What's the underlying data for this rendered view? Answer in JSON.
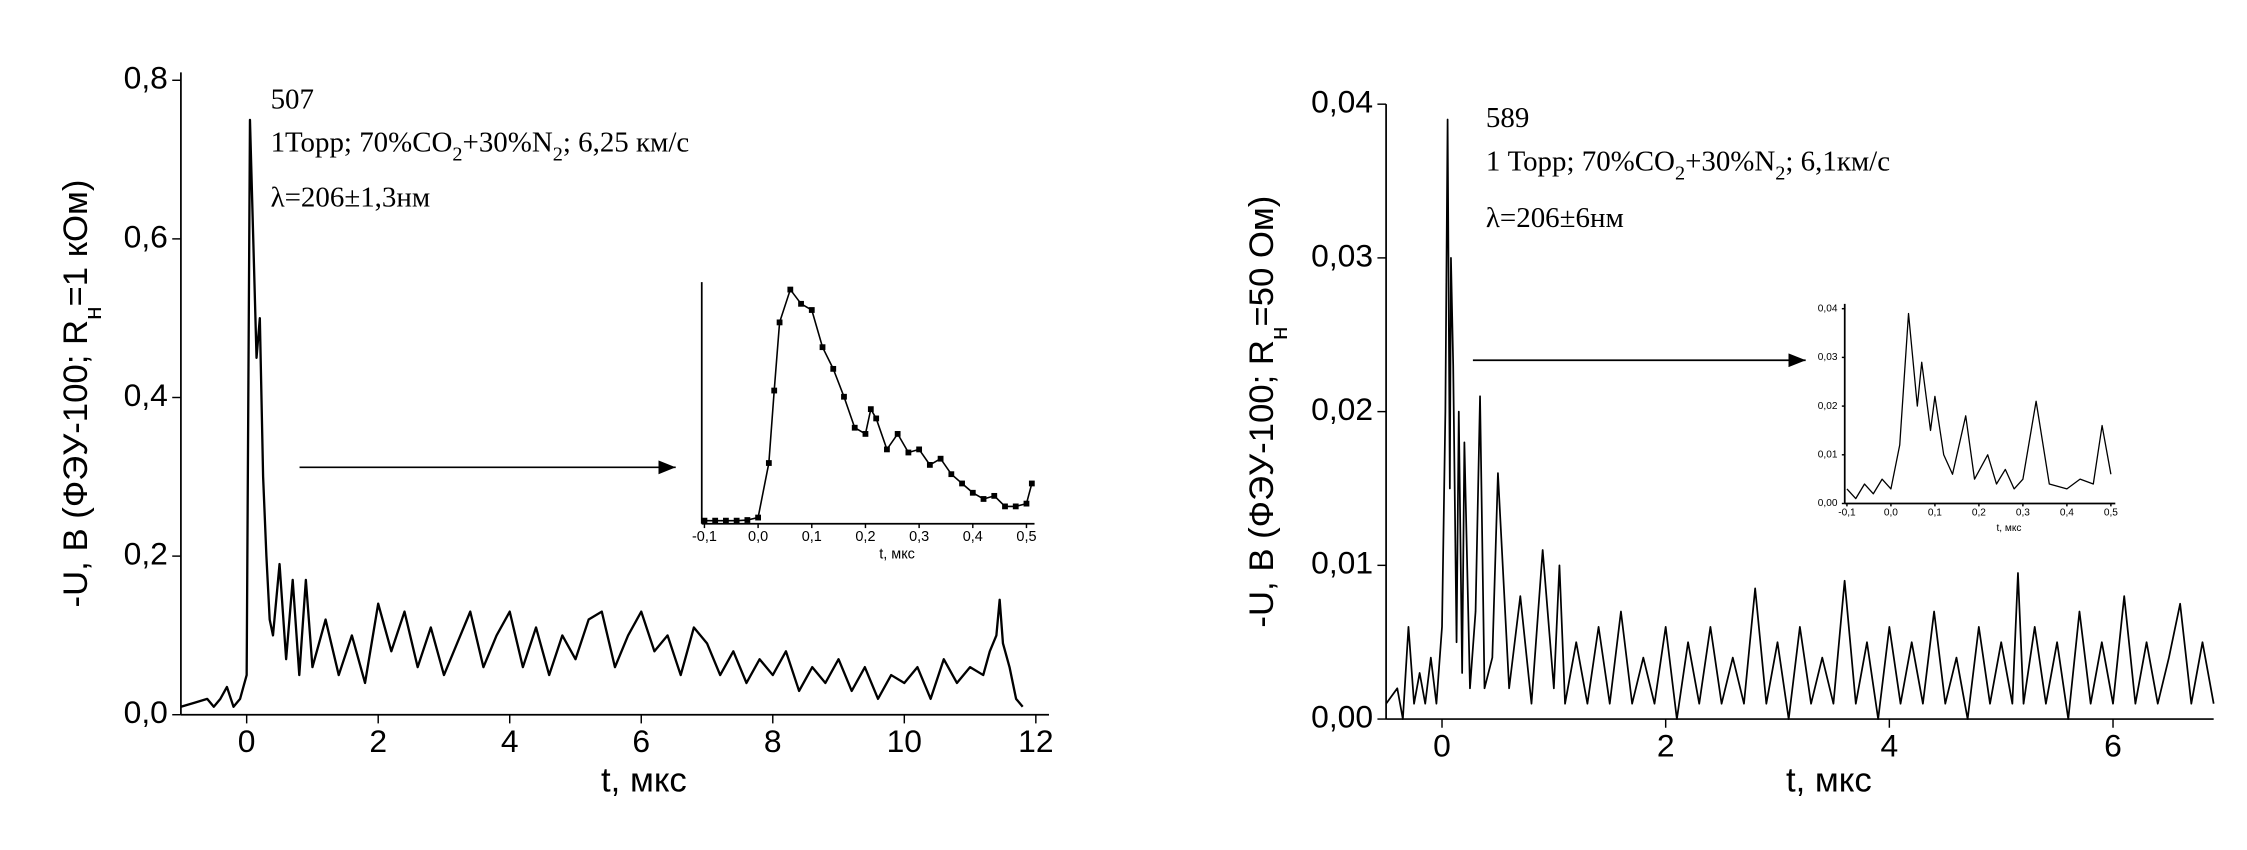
{
  "chart_data": [
    {
      "type": "line",
      "ylabel": [
        "-U, В (ФЭУ-100; R",
        "н",
        "=1 кОм)"
      ],
      "xlabel": "t, мкс",
      "annotations": [
        [
          "507"
        ],
        [
          "1Торр; 70%CO",
          "2",
          "+30%N",
          "2",
          "; 6,25 км/с"
        ],
        [
          "λ=206±1,3нм"
        ]
      ],
      "x": [
        -1,
        -0.8,
        -0.6,
        -0.5,
        -0.4,
        -0.3,
        -0.2,
        -0.1,
        0,
        0.05,
        0.1,
        0.15,
        0.2,
        0.25,
        0.3,
        0.35,
        0.4,
        0.5,
        0.6,
        0.7,
        0.8,
        0.9,
        1.0,
        1.2,
        1.4,
        1.6,
        1.8,
        2.0,
        2.2,
        2.4,
        2.6,
        2.8,
        3.0,
        3.2,
        3.4,
        3.6,
        3.8,
        4.0,
        4.2,
        4.4,
        4.6,
        4.8,
        5.0,
        5.2,
        5.4,
        5.6,
        5.8,
        6.0,
        6.2,
        6.4,
        6.6,
        6.8,
        7.0,
        7.2,
        7.4,
        7.6,
        7.8,
        8.0,
        8.2,
        8.4,
        8.6,
        8.8,
        9.0,
        9.2,
        9.4,
        9.6,
        9.8,
        10.0,
        10.2,
        10.4,
        10.6,
        10.8,
        11.0,
        11.2,
        11.3,
        11.4,
        11.45,
        11.5,
        11.6,
        11.7,
        11.8
      ],
      "values": [
        0.01,
        0.015,
        0.02,
        0.01,
        0.02,
        0.035,
        0.01,
        0.02,
        0.05,
        0.75,
        0.6,
        0.45,
        0.5,
        0.3,
        0.2,
        0.12,
        0.1,
        0.19,
        0.07,
        0.17,
        0.05,
        0.17,
        0.06,
        0.12,
        0.05,
        0.1,
        0.04,
        0.14,
        0.08,
        0.13,
        0.06,
        0.11,
        0.05,
        0.09,
        0.13,
        0.06,
        0.1,
        0.13,
        0.06,
        0.11,
        0.05,
        0.1,
        0.07,
        0.12,
        0.13,
        0.06,
        0.1,
        0.13,
        0.08,
        0.1,
        0.05,
        0.11,
        0.09,
        0.05,
        0.08,
        0.04,
        0.07,
        0.05,
        0.08,
        0.03,
        0.06,
        0.04,
        0.07,
        0.03,
        0.06,
        0.02,
        0.05,
        0.04,
        0.06,
        0.02,
        0.07,
        0.04,
        0.06,
        0.05,
        0.08,
        0.1,
        0.145,
        0.09,
        0.06,
        0.02,
        0.01
      ],
      "color": "#000000",
      "xlim": [
        -1,
        12.2
      ],
      "ylim": [
        0,
        0.81
      ],
      "xticks": [
        0,
        2,
        4,
        6,
        8,
        10,
        12
      ],
      "yticks": [
        {
          "value": 0,
          "label": "0,0"
        },
        {
          "value": 0.2,
          "label": "0,2"
        },
        {
          "value": 0.4,
          "label": "0,4"
        },
        {
          "value": 0.6,
          "label": "0,6"
        },
        {
          "value": 0.8,
          "label": "0,8"
        }
      ]
    },
    {
      "type": "line",
      "xlabel": "t, мкс",
      "markers": true,
      "x": [
        -0.1,
        -0.08,
        -0.06,
        -0.04,
        -0.02,
        0,
        0.02,
        0.03,
        0.04,
        0.06,
        0.08,
        0.1,
        0.12,
        0.14,
        0.16,
        0.18,
        0.2,
        0.21,
        0.22,
        0.24,
        0.26,
        0.28,
        0.3,
        0.32,
        0.34,
        0.36,
        0.38,
        0.4,
        0.42,
        0.44,
        0.46,
        0.48,
        0.5,
        0.51
      ],
      "values": [
        0.01,
        0.01,
        0.01,
        0.01,
        0.012,
        0.02,
        0.196,
        0.43,
        0.65,
        0.756,
        0.71,
        0.69,
        0.57,
        0.5,
        0.41,
        0.31,
        0.29,
        0.37,
        0.34,
        0.24,
        0.29,
        0.23,
        0.24,
        0.19,
        0.21,
        0.16,
        0.13,
        0.1,
        0.08,
        0.09,
        0.056,
        0.056,
        0.065,
        0.13
      ],
      "color": "#000000",
      "xlim": [
        -0.105,
        0.515
      ],
      "ylim": [
        0,
        0.78
      ],
      "xticks": [
        {
          "value": -0.1,
          "label": "-0,1"
        },
        {
          "value": 0,
          "label": "0,0"
        },
        {
          "value": 0.1,
          "label": "0,1"
        },
        {
          "value": 0.2,
          "label": "0,2"
        },
        {
          "value": 0.3,
          "label": "0,3"
        },
        {
          "value": 0.4,
          "label": "0,4"
        },
        {
          "value": 0.5,
          "label": "0,5"
        }
      ]
    },
    {
      "type": "line",
      "ylabel": [
        "-U, В (ФЭУ-100; R",
        "н",
        "=50 Ом)"
      ],
      "xlabel": "t, мкс",
      "annotations": [
        [
          "589"
        ],
        [
          "1 Торр; 70%CO",
          "2",
          "+30%N",
          "2",
          "; 6,1км/с"
        ],
        [
          "λ=206±6нм"
        ]
      ],
      "x": [
        -0.5,
        -0.4,
        -0.35,
        -0.3,
        -0.25,
        -0.2,
        -0.15,
        -0.1,
        -0.05,
        0,
        0.03,
        0.05,
        0.07,
        0.08,
        0.1,
        0.13,
        0.15,
        0.18,
        0.2,
        0.25,
        0.3,
        0.34,
        0.38,
        0.45,
        0.5,
        0.6,
        0.7,
        0.8,
        0.9,
        1.0,
        1.05,
        1.1,
        1.2,
        1.3,
        1.4,
        1.5,
        1.6,
        1.7,
        1.8,
        1.9,
        2.0,
        2.1,
        2.2,
        2.3,
        2.4,
        2.5,
        2.6,
        2.7,
        2.8,
        2.9,
        3.0,
        3.1,
        3.2,
        3.3,
        3.4,
        3.5,
        3.6,
        3.7,
        3.8,
        3.9,
        4.0,
        4.1,
        4.2,
        4.3,
        4.4,
        4.5,
        4.6,
        4.7,
        4.8,
        4.9,
        5.0,
        5.1,
        5.15,
        5.2,
        5.3,
        5.4,
        5.5,
        5.6,
        5.7,
        5.8,
        5.9,
        6.0,
        6.1,
        6.2,
        6.3,
        6.4,
        6.5,
        6.6,
        6.7,
        6.8,
        6.9
      ],
      "values": [
        0.001,
        0.002,
        0.0,
        0.006,
        0.001,
        0.003,
        0.001,
        0.004,
        0.001,
        0.006,
        0.02,
        0.039,
        0.015,
        0.03,
        0.023,
        0.005,
        0.02,
        0.003,
        0.018,
        0.002,
        0.007,
        0.021,
        0.002,
        0.004,
        0.016,
        0.002,
        0.008,
        0.001,
        0.011,
        0.002,
        0.01,
        0.001,
        0.005,
        0.001,
        0.006,
        0.001,
        0.007,
        0.001,
        0.004,
        0.001,
        0.006,
        0.0,
        0.005,
        0.001,
        0.006,
        0.001,
        0.004,
        0.001,
        0.0085,
        0.001,
        0.005,
        0.0,
        0.006,
        0.001,
        0.004,
        0.001,
        0.009,
        0.001,
        0.005,
        0.0,
        0.006,
        0.001,
        0.005,
        0.001,
        0.007,
        0.001,
        0.004,
        0.0,
        0.006,
        0.001,
        0.005,
        0.001,
        0.0095,
        0.001,
        0.006,
        0.001,
        0.005,
        0.0,
        0.007,
        0.001,
        0.005,
        0.001,
        0.008,
        0.001,
        0.005,
        0.001,
        0.004,
        0.0075,
        0.001,
        0.005,
        0.001
      ],
      "color": "#000000",
      "xlim": [
        -0.5,
        6.9
      ],
      "ylim": [
        0,
        0.04
      ],
      "xticks": [
        0,
        2,
        4,
        6
      ],
      "yticks": [
        {
          "value": 0,
          "label": "0,00"
        },
        {
          "value": 0.01,
          "label": "0,01"
        },
        {
          "value": 0.02,
          "label": "0,02"
        },
        {
          "value": 0.03,
          "label": "0,03"
        },
        {
          "value": 0.04,
          "label": "0,04"
        }
      ]
    },
    {
      "type": "line",
      "xlabel": "t, мкс",
      "x": [
        -0.1,
        -0.08,
        -0.06,
        -0.04,
        -0.02,
        0,
        0.02,
        0.04,
        0.06,
        0.07,
        0.09,
        0.1,
        0.12,
        0.14,
        0.17,
        0.19,
        0.22,
        0.24,
        0.26,
        0.28,
        0.3,
        0.33,
        0.36,
        0.4,
        0.43,
        0.46,
        0.48,
        0.5
      ],
      "values": [
        0.003,
        0.001,
        0.004,
        0.002,
        0.005,
        0.003,
        0.012,
        0.039,
        0.02,
        0.029,
        0.015,
        0.022,
        0.01,
        0.006,
        0.018,
        0.005,
        0.01,
        0.004,
        0.007,
        0.003,
        0.005,
        0.021,
        0.004,
        0.003,
        0.005,
        0.004,
        0.016,
        0.006
      ],
      "color": "#000000",
      "xlim": [
        -0.105,
        0.51
      ],
      "ylim": [
        0,
        0.041
      ],
      "xticks": [
        {
          "value": -0.1,
          "label": "-0,1"
        },
        {
          "value": 0,
          "label": "0,0"
        },
        {
          "value": 0.1,
          "label": "0,1"
        },
        {
          "value": 0.2,
          "label": "0,2"
        },
        {
          "value": 0.3,
          "label": "0,3"
        },
        {
          "value": 0.4,
          "label": "0,4"
        },
        {
          "value": 0.5,
          "label": "0,5"
        }
      ],
      "yticks": [
        {
          "value": 0,
          "label": "0,00"
        },
        {
          "value": 0.01,
          "label": "0,01"
        },
        {
          "value": 0.02,
          "label": "0,02"
        },
        {
          "value": 0.03,
          "label": "0,03"
        },
        {
          "value": 0.04,
          "label": "0,04"
        }
      ]
    }
  ]
}
